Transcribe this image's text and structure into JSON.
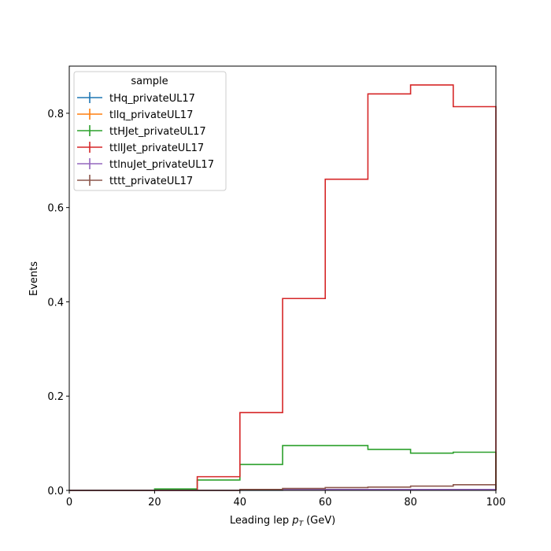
{
  "chart_data": {
    "type": "line",
    "step": true,
    "xlabel": "Leading lep",
    "xlabel_math_symbol": "p",
    "xlabel_math_sub": "T",
    "xlabel_unit": "(GeV)",
    "ylabel": "Events",
    "xlim": [
      0,
      100
    ],
    "ylim": [
      0,
      0.9
    ],
    "xticks": [
      0,
      20,
      40,
      60,
      80,
      100
    ],
    "yticks": [
      0.0,
      0.2,
      0.4,
      0.6,
      0.8
    ],
    "xtick_labels": [
      "0",
      "20",
      "40",
      "60",
      "80",
      "100"
    ],
    "ytick_labels": [
      "0.0",
      "0.2",
      "0.4",
      "0.6",
      "0.8"
    ],
    "grid": false,
    "legend_title": "sample",
    "legend_position": "upper-left",
    "bin_edges": [
      0,
      10,
      20,
      30,
      40,
      50,
      60,
      70,
      80,
      90,
      100
    ],
    "series": [
      {
        "name": "tHq_privateUL17",
        "color": "#1f77b4",
        "values": [
          0,
          0,
          0,
          0,
          0.0003,
          0.0005,
          0.0007,
          0.0009,
          0.001,
          0.0012
        ]
      },
      {
        "name": "tllq_privateUL17",
        "color": "#ff7f0e",
        "values": [
          0,
          0,
          0,
          0,
          0.0005,
          0.001,
          0.0012,
          0.0012,
          0.0013,
          0.0015
        ]
      },
      {
        "name": "ttHJet_privateUL17",
        "color": "#2ca02c",
        "values": [
          0,
          0,
          0.003,
          0.022,
          0.055,
          0.095,
          0.095,
          0.087,
          0.079,
          0.081
        ]
      },
      {
        "name": "ttllJet_privateUL17",
        "color": "#d62728",
        "values": [
          0,
          0,
          0,
          0.029,
          0.165,
          0.407,
          0.66,
          0.841,
          0.86,
          0.814
        ]
      },
      {
        "name": "ttlnuJet_privateUL17",
        "color": "#9467bd",
        "values": [
          0,
          0,
          0,
          0,
          0.001,
          0.002,
          0.002,
          0.002,
          0.002,
          0.002
        ]
      },
      {
        "name": "tttt_privateUL17",
        "color": "#8c564b",
        "values": [
          0,
          0,
          0,
          0,
          0.002,
          0.004,
          0.006,
          0.007,
          0.009,
          0.012
        ]
      }
    ]
  }
}
